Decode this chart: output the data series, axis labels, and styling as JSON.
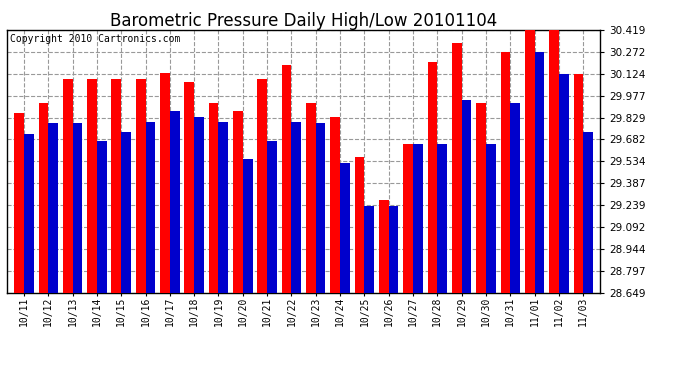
{
  "title": "Barometric Pressure Daily High/Low 20101104",
  "copyright": "Copyright 2010 Cartronics.com",
  "dates": [
    "10/11",
    "10/12",
    "10/13",
    "10/14",
    "10/15",
    "10/16",
    "10/17",
    "10/18",
    "10/19",
    "10/20",
    "10/21",
    "10/22",
    "10/23",
    "10/24",
    "10/25",
    "10/26",
    "10/27",
    "10/28",
    "10/29",
    "10/30",
    "10/31",
    "11/01",
    "11/02",
    "11/03"
  ],
  "highs": [
    29.86,
    29.93,
    30.09,
    30.09,
    30.09,
    30.09,
    30.13,
    30.07,
    29.93,
    29.87,
    30.09,
    30.18,
    29.93,
    29.83,
    29.56,
    29.27,
    29.65,
    30.2,
    30.33,
    29.93,
    30.27,
    30.42,
    30.42,
    30.12
  ],
  "lows": [
    29.72,
    29.79,
    29.79,
    29.67,
    29.73,
    29.8,
    29.87,
    29.83,
    29.8,
    29.55,
    29.67,
    29.8,
    29.79,
    29.52,
    29.23,
    29.23,
    29.65,
    29.65,
    29.95,
    29.65,
    29.93,
    30.27,
    30.12,
    29.73
  ],
  "ylim_min": 28.649,
  "ylim_max": 30.419,
  "yticks": [
    30.419,
    30.272,
    30.124,
    29.977,
    29.829,
    29.682,
    29.534,
    29.387,
    29.239,
    29.092,
    28.944,
    28.797,
    28.649
  ],
  "bar_width": 0.4,
  "high_color": "#ff0000",
  "low_color": "#0000cc",
  "bg_color": "#ffffff",
  "plot_bg_color": "#ffffff",
  "grid_color": "#999999",
  "title_fontsize": 12,
  "copyright_fontsize": 7
}
